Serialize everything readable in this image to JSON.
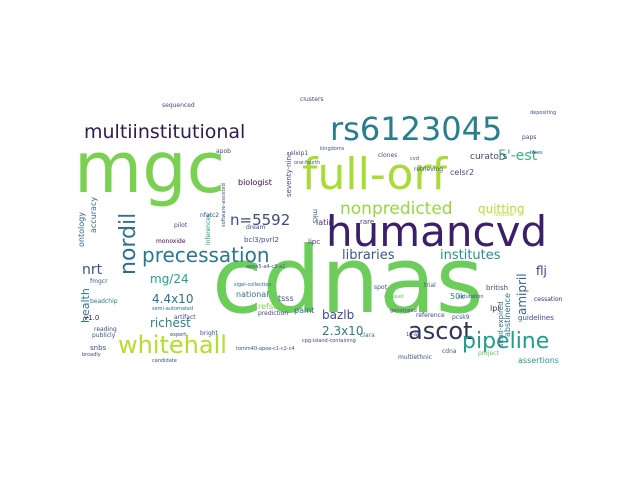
{
  "words": [
    {
      "text": "mgc",
      "size": 70,
      "color": "#7ad151"
    },
    {
      "text": "cdnas",
      "size": 92,
      "color": "#6ccd5a"
    },
    {
      "text": "full-orf",
      "size": 44,
      "color": "#a8db34"
    },
    {
      "text": "humancvd",
      "size": 42,
      "color": "#3b1f6b"
    },
    {
      "text": "rs6123045",
      "size": 32,
      "color": "#277f8e"
    },
    {
      "text": "multiinstitutional",
      "size": 19,
      "color": "#2d1c50"
    },
    {
      "text": "precessation",
      "size": 20,
      "color": "#2a788e"
    },
    {
      "text": "whitehall",
      "size": 24,
      "color": "#b5de2b"
    },
    {
      "text": "ascot",
      "size": 24,
      "color": "#30345a"
    },
    {
      "text": "pipeline",
      "size": 22,
      "color": "#1f9e89"
    },
    {
      "text": "nonpredicted",
      "size": 17,
      "color": "#95d840"
    },
    {
      "text": "nordil",
      "size": 22,
      "color": "#2c728e"
    },
    {
      "text": "n=5592",
      "size": 15,
      "color": "#3e4989"
    },
    {
      "text": "5'-est",
      "size": 14,
      "color": "#35b779"
    },
    {
      "text": "nrt",
      "size": 14,
      "color": "#39568c"
    },
    {
      "text": "mg/24",
      "size": 12,
      "color": "#20a486"
    },
    {
      "text": "4.4x10",
      "size": 12,
      "color": "#2d708e"
    },
    {
      "text": "richest",
      "size": 12,
      "color": "#26828e"
    },
    {
      "text": "libraries",
      "size": 13,
      "color": "#38598c"
    },
    {
      "text": "institutes",
      "size": 13,
      "color": "#1f958b"
    },
    {
      "text": "quitting",
      "size": 12,
      "color": "#b8de29"
    },
    {
      "text": "flj",
      "size": 12,
      "color": "#453781"
    },
    {
      "text": "bazlb",
      "size": 12,
      "color": "#3e4a89"
    },
    {
      "text": "2.3x10",
      "size": 12,
      "color": "#2a7b8e"
    },
    {
      "text": "amipril",
      "size": 12,
      "color": "#33628d"
    },
    {
      "text": "health",
      "size": 11,
      "color": "#2a788e"
    },
    {
      "text": "curators",
      "size": 9,
      "color": "#414487"
    },
    {
      "text": "celsr2",
      "size": 8,
      "color": "#3f4788"
    },
    {
      "text": "biologist",
      "size": 8,
      "color": "#440154"
    },
    {
      "text": "latin",
      "size": 8,
      "color": "#46327e"
    },
    {
      "text": "seventy-nine",
      "size": 7,
      "color": "#404688"
    },
    {
      "text": "ontology",
      "size": 8,
      "color": "#32658e"
    },
    {
      "text": "accuracy",
      "size": 8,
      "color": "#2f6b8e"
    },
    {
      "text": "national",
      "size": 8,
      "color": "#2c718e"
    },
    {
      "text": "refseq",
      "size": 8,
      "color": "#7ad151"
    },
    {
      "text": "tsss",
      "size": 8,
      "color": "#3c4f8a"
    },
    {
      "text": "paint",
      "size": 8,
      "color": "#2e6d8e"
    },
    {
      "text": "50k",
      "size": 8,
      "color": "#25858e"
    },
    {
      "text": "lpl",
      "size": 8,
      "color": "#481f70"
    },
    {
      "text": "british",
      "size": 7,
      "color": "#3b518b"
    },
    {
      "text": "abstinence",
      "size": 8,
      "color": "#2b748e"
    },
    {
      "text": "guidelines",
      "size": 7,
      "color": "#3d4d8a"
    },
    {
      "text": "assertions",
      "size": 8,
      "color": "#1e9b8a"
    },
    {
      "text": "cessation",
      "size": 6,
      "color": "#482878"
    },
    {
      "text": "bcl3/pvrl2",
      "size": 7,
      "color": "#3b528b"
    },
    {
      "text": "monoxide",
      "size": 6,
      "color": "#440154"
    },
    {
      "text": "dream",
      "size": 6,
      "color": "#3e4989"
    },
    {
      "text": "v1.0",
      "size": 7,
      "color": "#471063"
    },
    {
      "text": "beadchip",
      "size": 6,
      "color": "#2a788e"
    },
    {
      "text": "publicly",
      "size": 6,
      "color": "#3b528b"
    },
    {
      "text": "snbs",
      "size": 7,
      "color": "#3e4989"
    },
    {
      "text": "reading",
      "size": 6,
      "color": "#3f4788"
    },
    {
      "text": "prediction",
      "size": 6,
      "color": "#414487"
    },
    {
      "text": "multiethnic",
      "size": 6,
      "color": "#3b528b"
    },
    {
      "text": "cdna",
      "size": 6,
      "color": "#31688e"
    },
    {
      "text": "project",
      "size": 6,
      "color": "#5ec962"
    },
    {
      "text": "trial",
      "size": 6,
      "color": "#3b528b"
    },
    {
      "text": "reference",
      "size": 6,
      "color": "#404688"
    },
    {
      "text": "pcsk9",
      "size": 6,
      "color": "#3b528b"
    },
    {
      "text": "sequenced",
      "size": 6,
      "color": "#3f4788"
    },
    {
      "text": "clusters",
      "size": 6,
      "color": "#414487"
    },
    {
      "text": "kingdoms",
      "size": 5,
      "color": "#3b528b"
    },
    {
      "text": "clones",
      "size": 6,
      "color": "#3b528b"
    },
    {
      "text": "rare",
      "size": 7,
      "color": "#414487"
    },
    {
      "text": "pilot",
      "size": 6,
      "color": "#3f4788"
    },
    {
      "text": "lipc",
      "size": 7,
      "color": "#414487"
    },
    {
      "text": "nfatc2",
      "size": 6,
      "color": "#3b528b"
    },
    {
      "text": "clara",
      "size": 6,
      "color": "#2a788e"
    },
    {
      "text": "send-expired",
      "size": 7,
      "color": "#31688e"
    },
    {
      "text": "sigel-collection",
      "size": 5,
      "color": "#31688e"
    },
    {
      "text": "semi-automated",
      "size": 5,
      "color": "#2d708e"
    },
    {
      "text": "cpg-island-containing",
      "size": 5,
      "color": "#3e4989"
    },
    {
      "text": "artifact",
      "size": 6,
      "color": "#414487"
    },
    {
      "text": "bright",
      "size": 6,
      "color": "#3b528b"
    },
    {
      "text": "expert",
      "size": 5,
      "color": "#414487"
    },
    {
      "text": "candidate",
      "size": 5,
      "color": "#3b528b"
    },
    {
      "text": "broadly",
      "size": 5,
      "color": "#3e4989"
    },
    {
      "text": "one-fourth",
      "size": 5,
      "color": "#3b528b"
    },
    {
      "text": "software-assisted",
      "size": 5,
      "color": "#3b528b"
    },
    {
      "text": "inferences",
      "size": 6,
      "color": "#1f9e89"
    },
    {
      "text": "retrieving",
      "size": 6,
      "color": "#3b528b"
    },
    {
      "text": "nicotine",
      "size": 5,
      "color": "#b5de2b"
    },
    {
      "text": "paps",
      "size": 6,
      "color": "#3e4989"
    },
    {
      "text": "trees",
      "size": 5,
      "color": "#3b528b"
    },
    {
      "text": "depositing",
      "size": 5,
      "color": "#3b528b"
    },
    {
      "text": "cvd",
      "size": 5,
      "color": "#3b528b"
    },
    {
      "text": "genotyped",
      "size": 5,
      "color": "#3b528b"
    },
    {
      "text": "saturation",
      "size": 5,
      "color": "#3b528b"
    },
    {
      "text": "apob",
      "size": 6,
      "color": "#3e4989"
    },
    {
      "text": "elxip1",
      "size": 6,
      "color": "#414487"
    },
    {
      "text": "fmgcr",
      "size": 6,
      "color": "#3b528b"
    },
    {
      "text": "mks",
      "size": 7,
      "color": "#31688e"
    },
    {
      "text": "spot",
      "size": 6,
      "color": "#3b528b"
    },
    {
      "text": "cdnaset",
      "size": 5,
      "color": "#5ec962"
    },
    {
      "text": "tomm40-apoe-c1-c2-c4",
      "size": 5,
      "color": "#3b528b"
    },
    {
      "text": "apoa5-a4-c3-a1",
      "size": 5,
      "color": "#3b528b"
    },
    {
      "text": "10-ab",
      "size": 5,
      "color": "#3b528b"
    }
  ]
}
